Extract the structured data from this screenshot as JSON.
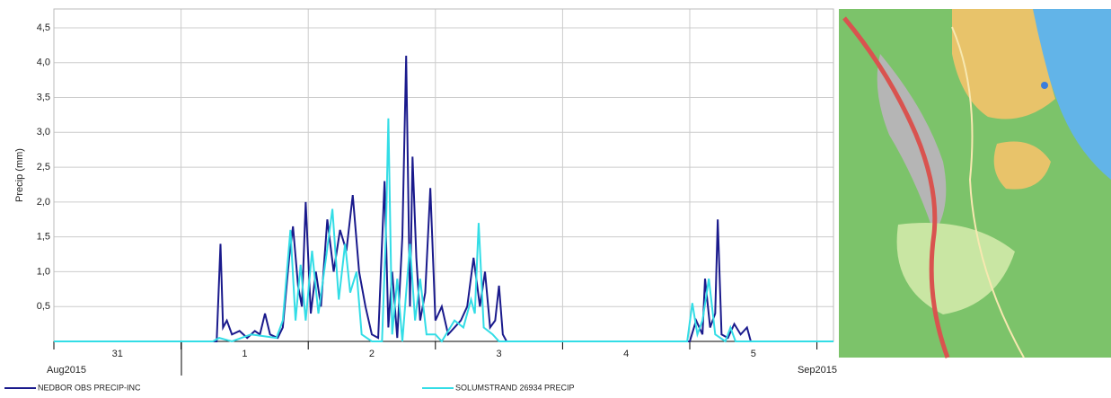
{
  "chart_data": {
    "type": "line",
    "ylabel": "Precip (mm)",
    "ylim": [
      0,
      4.77
    ],
    "yticks": [
      {
        "value": 0.5,
        "label": "0,5"
      },
      {
        "value": 1,
        "label": "1,0"
      },
      {
        "value": 1.5,
        "label": "1,5"
      },
      {
        "value": 2,
        "label": "2,0"
      },
      {
        "value": 2.5,
        "label": "2,5"
      },
      {
        "value": 3,
        "label": "3,0"
      },
      {
        "value": 3.5,
        "label": "3,5"
      },
      {
        "value": 4,
        "label": "4,0"
      },
      {
        "value": 4.5,
        "label": "4,5"
      }
    ],
    "xlim": [
      0,
      6.13
    ],
    "xgrid": [
      0,
      1,
      2,
      3,
      4,
      5,
      6
    ],
    "xticks": [
      {
        "value": 0.5,
        "label": "31"
      },
      {
        "value": 1.5,
        "label": "1"
      },
      {
        "value": 2.5,
        "label": "2"
      },
      {
        "value": 3.5,
        "label": "3"
      },
      {
        "value": 4.5,
        "label": "4"
      },
      {
        "value": 5.5,
        "label": "5"
      }
    ],
    "month_labels": [
      {
        "value": 0,
        "label": "Aug2015"
      },
      {
        "value": 6.13,
        "label": "Sep2015"
      }
    ],
    "grid": true,
    "series": [
      {
        "name": "NEDBOR OBS PRECIP-INC",
        "color": "#1a1a8c",
        "x": [
          0,
          1.28,
          1.31,
          1.33,
          1.36,
          1.4,
          1.46,
          1.52,
          1.58,
          1.62,
          1.66,
          1.7,
          1.76,
          1.8,
          1.85,
          1.88,
          1.92,
          1.95,
          1.98,
          2.02,
          2.06,
          2.1,
          2.15,
          2.2,
          2.25,
          2.3,
          2.35,
          2.4,
          2.45,
          2.5,
          2.55,
          2.6,
          2.63,
          2.66,
          2.7,
          2.74,
          2.77,
          2.8,
          2.82,
          2.85,
          2.88,
          2.92,
          2.96,
          3.0,
          3.05,
          3.1,
          3.2,
          3.25,
          3.3,
          3.35,
          3.39,
          3.43,
          3.47,
          3.5,
          3.53,
          3.56,
          5.0,
          5.05,
          5.1,
          5.12,
          5.16,
          5.2,
          5.22,
          5.25,
          5.3,
          5.35,
          5.4,
          5.45,
          5.48,
          6.13
        ],
        "values": [
          0,
          0,
          1.4,
          0.2,
          0.3,
          0.1,
          0.15,
          0.05,
          0.15,
          0.1,
          0.4,
          0.1,
          0.05,
          0.2,
          1.2,
          1.65,
          0.8,
          0.5,
          2.0,
          0.4,
          1.0,
          0.5,
          1.75,
          1.0,
          1.6,
          1.3,
          2.1,
          1.0,
          0.5,
          0.1,
          0.05,
          2.3,
          0.2,
          1.0,
          0.05,
          1.5,
          4.1,
          0.5,
          2.65,
          1.2,
          0.3,
          0.7,
          2.2,
          0.3,
          0.5,
          0.1,
          0.3,
          0.5,
          1.2,
          0.5,
          1.0,
          0.2,
          0.3,
          0.8,
          0.1,
          0,
          0,
          0.3,
          0.1,
          0.9,
          0.2,
          0.4,
          1.75,
          0.1,
          0.05,
          0.25,
          0.1,
          0.2,
          0,
          0
        ]
      },
      {
        "name": "SOLUMSTRAND 26934 PRECIP",
        "color": "#33dde6",
        "x": [
          0,
          1.25,
          1.3,
          1.4,
          1.55,
          1.75,
          1.8,
          1.86,
          1.9,
          1.94,
          1.98,
          2.03,
          2.08,
          2.14,
          2.19,
          2.24,
          2.29,
          2.33,
          2.38,
          2.42,
          2.5,
          2.58,
          2.61,
          2.63,
          2.66,
          2.7,
          2.74,
          2.8,
          2.84,
          2.88,
          2.93,
          3.0,
          3.05,
          3.15,
          3.22,
          3.28,
          3.31,
          3.34,
          3.38,
          3.45,
          3.5,
          4.98,
          5.02,
          5.06,
          5.1,
          5.15,
          5.2,
          5.28,
          5.32,
          5.36,
          6.13
        ],
        "values": [
          0,
          0,
          0.05,
          0,
          0.1,
          0.05,
          0.3,
          1.6,
          0.3,
          1.1,
          0.3,
          1.3,
          0.4,
          1.2,
          1.9,
          0.6,
          1.4,
          0.7,
          1.0,
          0.1,
          0,
          0,
          1.5,
          3.2,
          0.1,
          0.9,
          0,
          1.4,
          0.3,
          0.9,
          0.1,
          0.1,
          0,
          0.3,
          0.2,
          0.6,
          0.4,
          1.7,
          0.2,
          0.1,
          0,
          0,
          0.55,
          0.1,
          0.3,
          0.9,
          0.1,
          0,
          0.2,
          0,
          0
        ]
      }
    ]
  }
}
